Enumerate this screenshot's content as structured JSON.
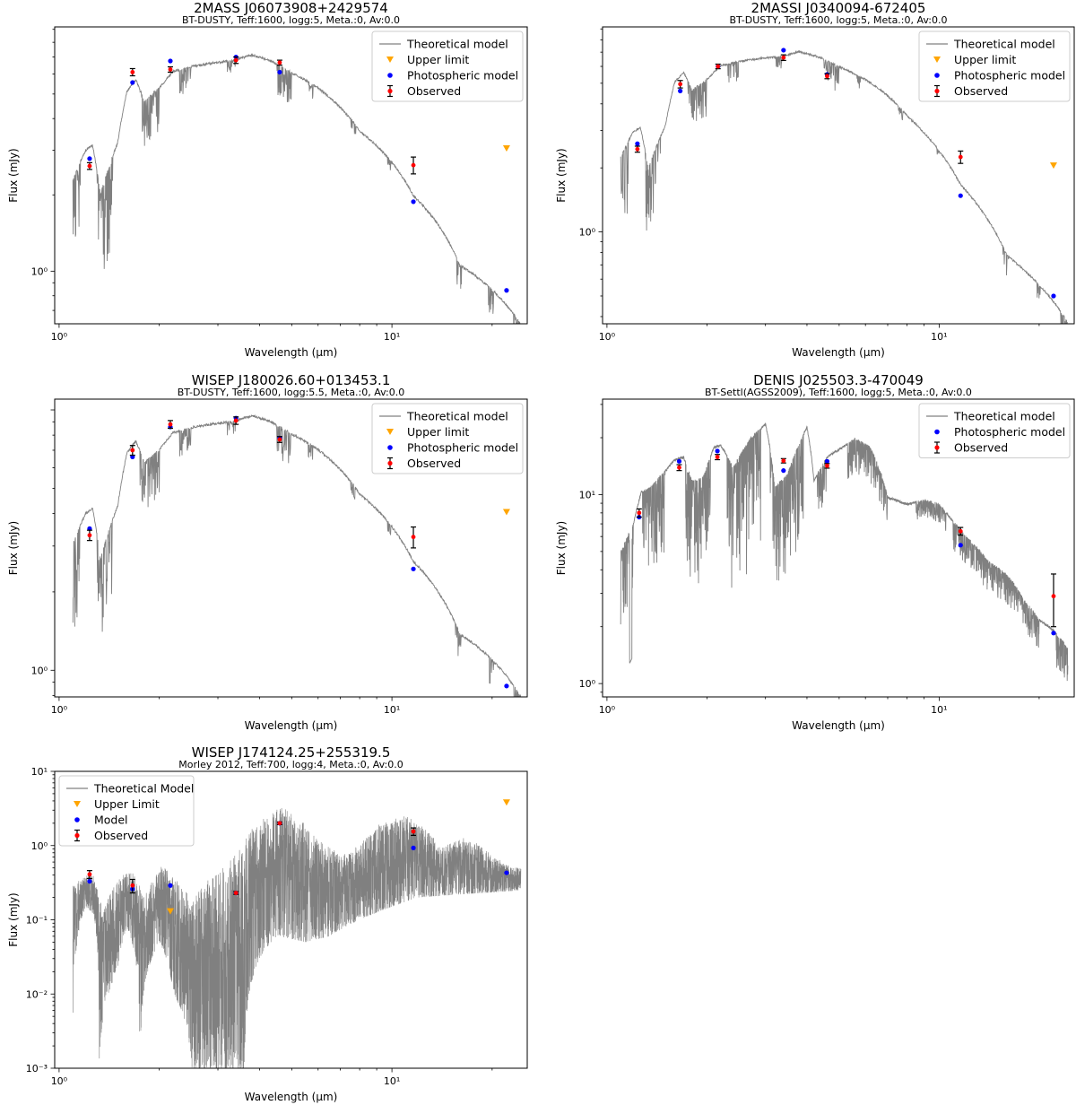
{
  "figure": {
    "line_color": "#808080",
    "upper_color": "#ffa500",
    "phot_color": "#0000ff",
    "obs_color": "#ff0000",
    "errbar_color": "#000000"
  },
  "chart_data": [
    {
      "type": "scatter",
      "title": "2MASS J06073908+2429574",
      "subtitle": "BT-DUSTY, Teff:1600, logg:5, Meta.:0, Av:0.0",
      "xlabel": "Wavelength (μm)",
      "ylabel": "Flux (mJy)",
      "xscale": "log",
      "yscale": "log",
      "xlim": [
        0.97,
        25.5
      ],
      "ylim": [
        0.62,
        9.2
      ],
      "xticks": [
        {
          "v": 1,
          "label": "10⁰"
        },
        {
          "v": 10,
          "label": "10¹"
        }
      ],
      "yticks": [
        {
          "v": 1,
          "label": "10⁰"
        }
      ],
      "grid": false,
      "legend_position": "top-right",
      "legend": [
        "Theoretical model",
        "Upper limit",
        "Photospheric model",
        "Observed"
      ],
      "model": {
        "name": "Theoretical model",
        "kind": "dusty",
        "peak": 7.2,
        "end": 0.62
      },
      "upper_limits": [
        {
          "x": 22.1,
          "y": 3.05
        }
      ],
      "photospheric": [
        [
          1.235,
          2.78
        ],
        [
          1.662,
          5.55
        ],
        [
          2.159,
          6.75
        ],
        [
          3.4,
          7.0
        ],
        [
          4.6,
          6.1
        ],
        [
          11.6,
          1.88
        ],
        [
          22.1,
          0.84
        ]
      ],
      "observed": [
        {
          "x": 1.235,
          "y": 2.6,
          "err": 0.08
        },
        {
          "x": 1.662,
          "y": 6.1,
          "err": 0.2
        },
        {
          "x": 2.159,
          "y": 6.25,
          "err": 0.15
        },
        {
          "x": 3.4,
          "y": 6.8,
          "err": 0.2
        },
        {
          "x": 4.6,
          "y": 6.65,
          "err": 0.15
        },
        {
          "x": 11.6,
          "y": 2.62,
          "err": 0.2
        }
      ]
    },
    {
      "type": "scatter",
      "title": "2MASSI J0340094-672405",
      "subtitle": "BT-DUSTY, Teff:1600, logg:5, Meta.:0, Av:0.0",
      "xlabel": "Wavelength (μm)",
      "ylabel": "Flux (mJy)",
      "xscale": "log",
      "yscale": "log",
      "xlim": [
        0.97,
        25.5
      ],
      "ylim": [
        0.37,
        9.2
      ],
      "xticks": [
        {
          "v": 1,
          "label": "10⁰"
        },
        {
          "v": 10,
          "label": "10¹"
        }
      ],
      "yticks": [
        {
          "v": 1,
          "label": "10⁰"
        }
      ],
      "grid": false,
      "legend_position": "top-right",
      "legend": [
        "Theoretical model",
        "Upper limit",
        "Photospheric model",
        "Observed"
      ],
      "model": {
        "name": "Theoretical model",
        "kind": "dusty",
        "peak": 7.1,
        "end": 0.38
      },
      "upper_limits": [
        {
          "x": 22.1,
          "y": 2.05
        }
      ],
      "photospheric": [
        [
          1.235,
          2.6
        ],
        [
          1.662,
          4.6
        ],
        [
          2.159,
          6.0
        ],
        [
          3.4,
          7.15
        ],
        [
          4.6,
          5.5
        ],
        [
          11.6,
          1.48
        ],
        [
          22.1,
          0.5
        ]
      ],
      "observed": [
        {
          "x": 1.235,
          "y": 2.45,
          "err": 0.08
        },
        {
          "x": 1.662,
          "y": 4.95,
          "err": 0.2
        },
        {
          "x": 2.159,
          "y": 6.0,
          "err": 0.15
        },
        {
          "x": 3.4,
          "y": 6.6,
          "err": 0.2
        },
        {
          "x": 4.6,
          "y": 5.4,
          "err": 0.15
        },
        {
          "x": 11.6,
          "y": 2.25,
          "err": 0.15
        }
      ]
    },
    {
      "type": "scatter",
      "title": "WISEP J180026.60+013453.1",
      "subtitle": "BT-DUSTY, Teff:1600, logg:5.5, Meta.:0, Av:0.0",
      "xlabel": "Wavelength (μm)",
      "ylabel": "Flux (mJy)",
      "xscale": "log",
      "yscale": "log",
      "xlim": [
        0.97,
        25.5
      ],
      "ylim": [
        0.79,
        11.0
      ],
      "xticks": [
        {
          "v": 1,
          "label": "10⁰"
        },
        {
          "v": 10,
          "label": "10¹"
        }
      ],
      "yticks": [
        {
          "v": 1,
          "label": "10⁰"
        }
      ],
      "grid": false,
      "legend_position": "top-right",
      "legend": [
        "Theoretical model",
        "Upper limit",
        "Photospheric model",
        "Observed"
      ],
      "model": {
        "name": "Theoretical model",
        "kind": "dusty",
        "peak": 9.6,
        "end": 0.8
      },
      "upper_limits": [
        {
          "x": 22.1,
          "y": 4.05
        }
      ],
      "photospheric": [
        [
          1.235,
          3.5
        ],
        [
          1.662,
          6.6
        ],
        [
          2.159,
          8.6
        ],
        [
          3.4,
          9.3
        ],
        [
          4.6,
          7.8
        ],
        [
          11.6,
          2.45
        ],
        [
          22.1,
          0.87
        ]
      ],
      "observed": [
        {
          "x": 1.235,
          "y": 3.3,
          "err": 0.15
        },
        {
          "x": 1.662,
          "y": 7.0,
          "err": 0.3
        },
        {
          "x": 2.159,
          "y": 8.8,
          "err": 0.3
        },
        {
          "x": 3.4,
          "y": 9.1,
          "err": 0.3
        },
        {
          "x": 4.6,
          "y": 7.7,
          "err": 0.2
        },
        {
          "x": 11.6,
          "y": 3.25,
          "err": 0.3
        }
      ]
    },
    {
      "type": "scatter",
      "title": "DENIS J025503.3-470049",
      "subtitle": "BT-Settl(AGSS2009), Teff:1600, logg:5, Meta.:0, Av:0.0",
      "xlabel": "Wavelength (μm)",
      "ylabel": "Flux (mJy)",
      "xscale": "log",
      "yscale": "log",
      "xlim": [
        0.97,
        25.5
      ],
      "ylim": [
        0.85,
        32.0
      ],
      "xticks": [
        {
          "v": 1,
          "label": "10⁰"
        },
        {
          "v": 10,
          "label": "10¹"
        }
      ],
      "yticks": [
        {
          "v": 1,
          "label": "10⁰"
        },
        {
          "v": 10,
          "label": "10¹"
        }
      ],
      "grid": false,
      "legend_position": "top-right",
      "legend": [
        "Theoretical model",
        "Photospheric model",
        "Observed"
      ],
      "model": {
        "name": "Theoretical model",
        "kind": "settl"
      },
      "upper_limits": [],
      "photospheric": [
        [
          1.25,
          7.6
        ],
        [
          1.65,
          15.0
        ],
        [
          2.15,
          17.0
        ],
        [
          3.4,
          13.4
        ],
        [
          4.6,
          15.0
        ],
        [
          11.6,
          5.4
        ],
        [
          22.1,
          1.85
        ]
      ],
      "observed": [
        {
          "x": 1.25,
          "y": 8.0,
          "err": 0.4
        },
        {
          "x": 1.65,
          "y": 13.9,
          "err": 0.5
        },
        {
          "x": 2.15,
          "y": 15.8,
          "err": 0.5
        },
        {
          "x": 3.4,
          "y": 15.1,
          "err": 0.4
        },
        {
          "x": 4.6,
          "y": 14.2,
          "err": 0.4
        },
        {
          "x": 11.6,
          "y": 6.4,
          "err": 0.3
        },
        {
          "x": 22.1,
          "y": 2.9,
          "err": 0.9
        }
      ]
    },
    {
      "type": "scatter",
      "title": "WISEP J174124.25+255319.5",
      "subtitle": "Morley 2012, Teff:700, logg:4, Meta.:0, Av:0.0",
      "xlabel": "Wavelength (μm)",
      "ylabel": "Flux (mJy)",
      "xscale": "log",
      "yscale": "log",
      "xlim": [
        0.97,
        25.5
      ],
      "ylim": [
        0.001,
        10
      ],
      "xticks": [
        {
          "v": 1,
          "label": "10⁰"
        },
        {
          "v": 10,
          "label": "10¹"
        }
      ],
      "yticks": [
        {
          "v": 0.001,
          "label": "10⁻³"
        },
        {
          "v": 0.01,
          "label": "10⁻²"
        },
        {
          "v": 0.1,
          "label": "10⁻¹"
        },
        {
          "v": 1,
          "label": "10⁰"
        },
        {
          "v": 10,
          "label": "10¹"
        }
      ],
      "grid": false,
      "legend_position": "top-left",
      "legend": [
        "Theoretical Model",
        "Upper Limit",
        "Model",
        "Observed"
      ],
      "model": {
        "name": "Theoretical Model",
        "kind": "morley"
      },
      "upper_limits": [
        {
          "x": 2.159,
          "y": 0.13
        },
        {
          "x": 22.1,
          "y": 3.8
        }
      ],
      "photospheric": [
        [
          1.235,
          0.33
        ],
        [
          1.662,
          0.26
        ],
        [
          2.159,
          0.29
        ],
        [
          3.4,
          0.23
        ],
        [
          4.6,
          2.0
        ],
        [
          11.6,
          0.93
        ],
        [
          22.1,
          0.43
        ]
      ],
      "observed": [
        {
          "x": 1.235,
          "y": 0.41,
          "err": 0.05
        },
        {
          "x": 1.662,
          "y": 0.29,
          "err": 0.06
        },
        {
          "x": 3.4,
          "y": 0.23,
          "err": 0.01
        },
        {
          "x": 4.6,
          "y": 2.0,
          "err": 0.08
        },
        {
          "x": 11.6,
          "y": 1.55,
          "err": 0.18
        }
      ]
    }
  ]
}
